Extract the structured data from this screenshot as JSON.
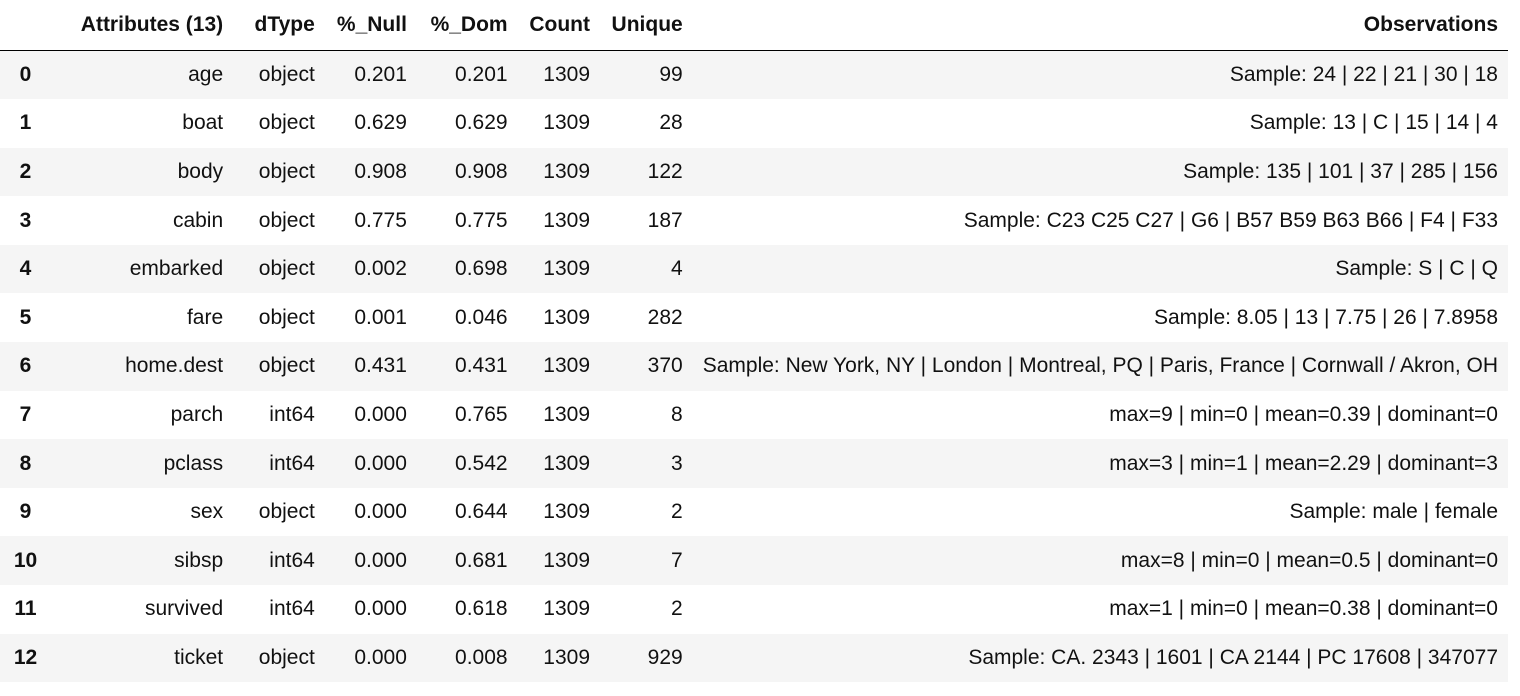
{
  "table": {
    "index_header": "",
    "columns": [
      "Attributes (13)",
      "dType",
      "%_Null",
      "%_Dom",
      "Count",
      "Unique",
      "Observations"
    ],
    "rows": [
      {
        "index": "0",
        "attr": "age",
        "dtype": "object",
        "null": "0.201",
        "dom": "0.201",
        "count": "1309",
        "unique": "99",
        "obs": "Sample: 24 | 22 | 21 | 30 | 18"
      },
      {
        "index": "1",
        "attr": "boat",
        "dtype": "object",
        "null": "0.629",
        "dom": "0.629",
        "count": "1309",
        "unique": "28",
        "obs": "Sample: 13 | C | 15 | 14 | 4"
      },
      {
        "index": "2",
        "attr": "body",
        "dtype": "object",
        "null": "0.908",
        "dom": "0.908",
        "count": "1309",
        "unique": "122",
        "obs": "Sample: 135 | 101 | 37 | 285 | 156"
      },
      {
        "index": "3",
        "attr": "cabin",
        "dtype": "object",
        "null": "0.775",
        "dom": "0.775",
        "count": "1309",
        "unique": "187",
        "obs": "Sample: C23 C25 C27 | G6 | B57 B59 B63 B66 | F4 | F33"
      },
      {
        "index": "4",
        "attr": "embarked",
        "dtype": "object",
        "null": "0.002",
        "dom": "0.698",
        "count": "1309",
        "unique": "4",
        "obs": "Sample: S | C | Q"
      },
      {
        "index": "5",
        "attr": "fare",
        "dtype": "object",
        "null": "0.001",
        "dom": "0.046",
        "count": "1309",
        "unique": "282",
        "obs": "Sample: 8.05 | 13 | 7.75 | 26 | 7.8958"
      },
      {
        "index": "6",
        "attr": "home.dest",
        "dtype": "object",
        "null": "0.431",
        "dom": "0.431",
        "count": "1309",
        "unique": "370",
        "obs": "Sample: New York, NY | London | Montreal, PQ | Paris, France | Cornwall / Akron, OH"
      },
      {
        "index": "7",
        "attr": "parch",
        "dtype": "int64",
        "null": "0.000",
        "dom": "0.765",
        "count": "1309",
        "unique": "8",
        "obs": "max=9 | min=0 | mean=0.39 | dominant=0"
      },
      {
        "index": "8",
        "attr": "pclass",
        "dtype": "int64",
        "null": "0.000",
        "dom": "0.542",
        "count": "1309",
        "unique": "3",
        "obs": "max=3 | min=1 | mean=2.29 | dominant=3"
      },
      {
        "index": "9",
        "attr": "sex",
        "dtype": "object",
        "null": "0.000",
        "dom": "0.644",
        "count": "1309",
        "unique": "2",
        "obs": "Sample: male | female"
      },
      {
        "index": "10",
        "attr": "sibsp",
        "dtype": "int64",
        "null": "0.000",
        "dom": "0.681",
        "count": "1309",
        "unique": "7",
        "obs": "max=8 | min=0 | mean=0.5 | dominant=0"
      },
      {
        "index": "11",
        "attr": "survived",
        "dtype": "int64",
        "null": "0.000",
        "dom": "0.618",
        "count": "1309",
        "unique": "2",
        "obs": "max=1 | min=0 | mean=0.38 | dominant=0"
      },
      {
        "index": "12",
        "attr": "ticket",
        "dtype": "object",
        "null": "0.000",
        "dom": "0.008",
        "count": "1309",
        "unique": "929",
        "obs": "Sample: CA. 2343 | 1601 | CA 2144 | PC 17608 | 347077"
      }
    ]
  },
  "colors": {
    "stripe": "#f5f5f5",
    "header_border": "#000000",
    "text": "#111111"
  }
}
